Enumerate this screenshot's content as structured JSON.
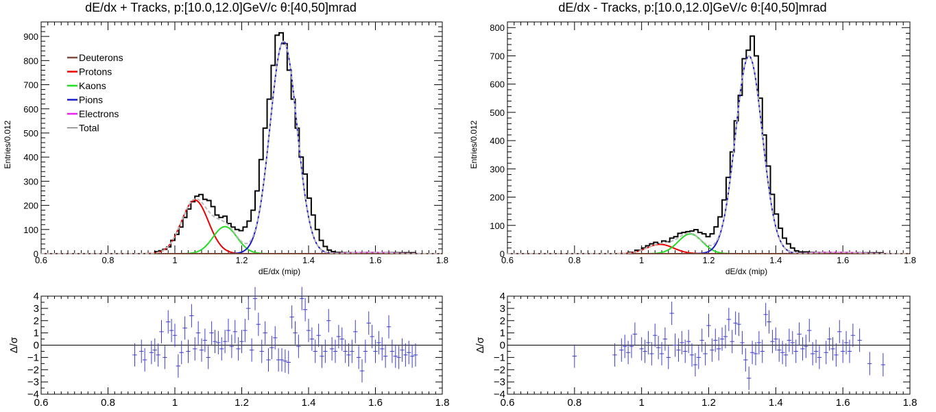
{
  "chart_data": [
    {
      "type": "line",
      "title": "dE/dx + Tracks, p:[10.0,12.0]GeV/c θ:[40,50]mrad",
      "xlabel": "dE/dx (mip)",
      "ylabel": "Entries/0.012",
      "xlim": [
        0.6,
        1.8
      ],
      "ylim": [
        0,
        960
      ],
      "x_ticks": [
        "0.6",
        "0.8",
        "1",
        "1.2",
        "1.4",
        "1.6",
        "1.8"
      ],
      "y_ticks": [
        "0",
        "100",
        "200",
        "300",
        "400",
        "500",
        "600",
        "700",
        "800",
        "900"
      ],
      "legend_position": "top-left",
      "legend": [
        "Deuterons",
        "Protons",
        "Kaons",
        "Pions",
        "Electrons",
        "Total"
      ],
      "series": [
        {
          "name": "Protons",
          "color": "#ee0000",
          "gauss": {
            "amp": 222,
            "mean": 1.06,
            "sigma": 0.04
          }
        },
        {
          "name": "Kaons",
          "color": "#22dd22",
          "gauss": {
            "amp": 112,
            "mean": 1.15,
            "sigma": 0.036
          }
        },
        {
          "name": "Pions",
          "color": "#1a1acc",
          "gauss": {
            "amp": 880,
            "mean": 1.325,
            "sigma": 0.04
          }
        },
        {
          "name": "Electrons",
          "color": "#ee22ee",
          "gauss": {
            "amp": 5,
            "mean": 1.58,
            "sigma": 0.06
          }
        },
        {
          "name": "Deuterons",
          "color": "#7a4a3a",
          "gauss": {
            "amp": 0,
            "mean": 0.9,
            "sigma": 0.05
          }
        }
      ],
      "data_histogram": [
        [
          0.88,
          0
        ],
        [
          0.94,
          8
        ],
        [
          0.952,
          12
        ],
        [
          0.964,
          18
        ],
        [
          0.976,
          28
        ],
        [
          0.988,
          55
        ],
        [
          1.0,
          80
        ],
        [
          1.012,
          110
        ],
        [
          1.024,
          150
        ],
        [
          1.036,
          185
        ],
        [
          1.048,
          215
        ],
        [
          1.06,
          238
        ],
        [
          1.072,
          245
        ],
        [
          1.084,
          225
        ],
        [
          1.096,
          220
        ],
        [
          1.108,
          195
        ],
        [
          1.12,
          160
        ],
        [
          1.132,
          150
        ],
        [
          1.144,
          155
        ],
        [
          1.156,
          125
        ],
        [
          1.168,
          110
        ],
        [
          1.18,
          100
        ],
        [
          1.192,
          95
        ],
        [
          1.204,
          110
        ],
        [
          1.216,
          135
        ],
        [
          1.228,
          180
        ],
        [
          1.24,
          260
        ],
        [
          1.252,
          390
        ],
        [
          1.264,
          520
        ],
        [
          1.276,
          640
        ],
        [
          1.288,
          780
        ],
        [
          1.3,
          905
        ],
        [
          1.312,
          915
        ],
        [
          1.324,
          870
        ],
        [
          1.336,
          760
        ],
        [
          1.348,
          640
        ],
        [
          1.36,
          520
        ],
        [
          1.372,
          400
        ],
        [
          1.384,
          330
        ],
        [
          1.396,
          230
        ],
        [
          1.408,
          160
        ],
        [
          1.42,
          100
        ],
        [
          1.432,
          55
        ],
        [
          1.444,
          30
        ],
        [
          1.456,
          15
        ],
        [
          1.468,
          8
        ],
        [
          1.48,
          5
        ],
        [
          1.5,
          4
        ],
        [
          1.6,
          4
        ],
        [
          1.72,
          0
        ]
      ],
      "residuals": {
        "ylim": [
          -4,
          4
        ],
        "ylabel": "Δ/σ",
        "y_ticks": [
          "−4",
          "−3",
          "−2",
          "−1",
          "0",
          "1",
          "2",
          "3",
          "4"
        ],
        "x": [
          0.88,
          0.9,
          0.91,
          0.93,
          0.94,
          0.95,
          0.96,
          0.97,
          0.98,
          0.99,
          1.0,
          1.01,
          1.02,
          1.03,
          1.04,
          1.05,
          1.06,
          1.07,
          1.08,
          1.09,
          1.1,
          1.11,
          1.12,
          1.13,
          1.14,
          1.15,
          1.16,
          1.17,
          1.18,
          1.19,
          1.2,
          1.21,
          1.22,
          1.23,
          1.24,
          1.25,
          1.26,
          1.27,
          1.28,
          1.29,
          1.3,
          1.31,
          1.32,
          1.33,
          1.34,
          1.35,
          1.36,
          1.37,
          1.38,
          1.39,
          1.4,
          1.41,
          1.42,
          1.43,
          1.44,
          1.45,
          1.46,
          1.47,
          1.48,
          1.49,
          1.5,
          1.51,
          1.52,
          1.53,
          1.54,
          1.55,
          1.56,
          1.57,
          1.58,
          1.59,
          1.6,
          1.61,
          1.62,
          1.63,
          1.64,
          1.65,
          1.66,
          1.67,
          1.68,
          1.69,
          1.7,
          1.71,
          1.72
        ],
        "y": [
          -0.8,
          -0.5,
          -1.2,
          -0.6,
          -0.4,
          -0.8,
          1.1,
          -1.0,
          1.9,
          1.2,
          0.8,
          -1.7,
          -0.6,
          1.4,
          -0.5,
          2.4,
          -0.3,
          1.0,
          -0.4,
          0.4,
          -1.0,
          1.0,
          0.3,
          0.2,
          -0.3,
          0.3,
          1.2,
          -0.1,
          1.1,
          -0.3,
          0.3,
          1.2,
          3.0,
          -0.4,
          3.8,
          1.7,
          -0.5,
          1.0,
          -1.2,
          -0.2,
          0.6,
          -1.2,
          -1.2,
          -1.3,
          -1.4,
          2.3,
          1.0,
          -0.1,
          3.8,
          2.9,
          1.2,
          0.5,
          -0.5,
          0.8,
          -0.9,
          -0.5,
          2.0,
          -0.3,
          -0.5,
          0.7,
          0.5,
          -0.5,
          -0.8,
          -0.5,
          1.1,
          -1.0,
          -2.1,
          -0.5,
          1.8,
          0.7,
          -0.5,
          0.2,
          -0.3,
          -0.9,
          1.5,
          -0.5,
          -0.9,
          -1.0,
          -0.4,
          -0.8,
          -0.6,
          -0.9,
          -0.8
        ]
      }
    },
    {
      "type": "line",
      "title": "dE/dx - Tracks, p:[10.0,12.0]GeV/c θ:[40,50]mrad",
      "xlabel": "dE/dx (mip)",
      "ylabel": "Entries/0.012",
      "xlim": [
        0.6,
        1.8
      ],
      "ylim": [
        0,
        820
      ],
      "x_ticks": [
        "0.6",
        "0.8",
        "1",
        "1.2",
        "1.4",
        "1.6",
        "1.8"
      ],
      "y_ticks": [
        "0",
        "100",
        "200",
        "300",
        "400",
        "500",
        "600",
        "700",
        "800"
      ],
      "series": [
        {
          "name": "Protons",
          "color": "#ee0000",
          "gauss": {
            "amp": 33,
            "mean": 1.055,
            "sigma": 0.04
          }
        },
        {
          "name": "Kaons",
          "color": "#22dd22",
          "gauss": {
            "amp": 70,
            "mean": 1.145,
            "sigma": 0.036
          }
        },
        {
          "name": "Pions",
          "color": "#1a1acc",
          "gauss": {
            "amp": 700,
            "mean": 1.32,
            "sigma": 0.04
          }
        },
        {
          "name": "Electrons",
          "color": "#ee22ee",
          "gauss": {
            "amp": 5,
            "mean": 1.58,
            "sigma": 0.06
          }
        },
        {
          "name": "Deuterons",
          "color": "#7a4a3a",
          "gauss": {
            "amp": 0,
            "mean": 0.9,
            "sigma": 0.05
          }
        }
      ],
      "data_histogram": [
        [
          0.92,
          0
        ],
        [
          0.96,
          5
        ],
        [
          0.98,
          12
        ],
        [
          1.0,
          20
        ],
        [
          1.012,
          28
        ],
        [
          1.024,
          35
        ],
        [
          1.036,
          40
        ],
        [
          1.048,
          35
        ],
        [
          1.06,
          45
        ],
        [
          1.072,
          42
        ],
        [
          1.084,
          55
        ],
        [
          1.096,
          60
        ],
        [
          1.108,
          72
        ],
        [
          1.12,
          75
        ],
        [
          1.132,
          78
        ],
        [
          1.144,
          80
        ],
        [
          1.156,
          85
        ],
        [
          1.168,
          75
        ],
        [
          1.18,
          70
        ],
        [
          1.192,
          60
        ],
        [
          1.204,
          70
        ],
        [
          1.216,
          95
        ],
        [
          1.228,
          130
        ],
        [
          1.24,
          190
        ],
        [
          1.252,
          270
        ],
        [
          1.264,
          360
        ],
        [
          1.276,
          470
        ],
        [
          1.288,
          560
        ],
        [
          1.3,
          690
        ],
        [
          1.312,
          720
        ],
        [
          1.324,
          770
        ],
        [
          1.336,
          700
        ],
        [
          1.348,
          550
        ],
        [
          1.36,
          420
        ],
        [
          1.372,
          310
        ],
        [
          1.384,
          210
        ],
        [
          1.396,
          140
        ],
        [
          1.408,
          90
        ],
        [
          1.42,
          55
        ],
        [
          1.432,
          35
        ],
        [
          1.444,
          20
        ],
        [
          1.456,
          10
        ],
        [
          1.468,
          6
        ],
        [
          1.5,
          4
        ],
        [
          1.6,
          3
        ],
        [
          1.72,
          0
        ]
      ],
      "residuals": {
        "ylim": [
          -4,
          4
        ],
        "ylabel": "Δ/σ",
        "y_ticks": [
          "−4",
          "−3",
          "−2",
          "−1",
          "0",
          "1",
          "2",
          "3",
          "4"
        ],
        "x": [
          0.8,
          0.92,
          0.94,
          0.95,
          0.96,
          0.97,
          0.98,
          1.0,
          1.01,
          1.02,
          1.03,
          1.04,
          1.05,
          1.06,
          1.07,
          1.08,
          1.09,
          1.1,
          1.11,
          1.12,
          1.13,
          1.14,
          1.15,
          1.16,
          1.17,
          1.18,
          1.19,
          1.2,
          1.21,
          1.22,
          1.23,
          1.24,
          1.25,
          1.26,
          1.27,
          1.28,
          1.29,
          1.3,
          1.31,
          1.32,
          1.33,
          1.34,
          1.35,
          1.36,
          1.37,
          1.38,
          1.39,
          1.4,
          1.41,
          1.42,
          1.43,
          1.44,
          1.45,
          1.46,
          1.47,
          1.48,
          1.49,
          1.5,
          1.51,
          1.52,
          1.53,
          1.55,
          1.56,
          1.57,
          1.58,
          1.59,
          1.6,
          1.61,
          1.62,
          1.63,
          1.65,
          1.68,
          1.72
        ],
        "y": [
          -0.9,
          -0.8,
          -0.4,
          -0.1,
          -0.6,
          -0.1,
          0.9,
          -0.3,
          -0.5,
          0.2,
          -0.7,
          0.8,
          -0.2,
          -0.7,
          0.5,
          -1.0,
          2.6,
          0.0,
          -0.4,
          0.2,
          -0.5,
          0.3,
          -0.8,
          -1.6,
          -1.0,
          0.4,
          -0.7,
          1.6,
          -0.4,
          0.4,
          -0.3,
          0.5,
          0.7,
          2.1,
          0.3,
          1.8,
          1.7,
          0.2,
          -1.2,
          -2.7,
          -0.6,
          -0.7,
          0.2,
          -0.5,
          2.5,
          1.9,
          0.3,
          0.5,
          -0.4,
          -0.6,
          -0.8,
          0.4,
          0.2,
          -0.5,
          0.9,
          -0.3,
          -0.1,
          1.2,
          -0.7,
          -0.5,
          -1.0,
          -0.6,
          0.5,
          -0.3,
          -0.8,
          1.1,
          -0.5,
          0.2,
          -0.5,
          0.8,
          0.4,
          -1.5,
          -1.6
        ]
      }
    }
  ]
}
